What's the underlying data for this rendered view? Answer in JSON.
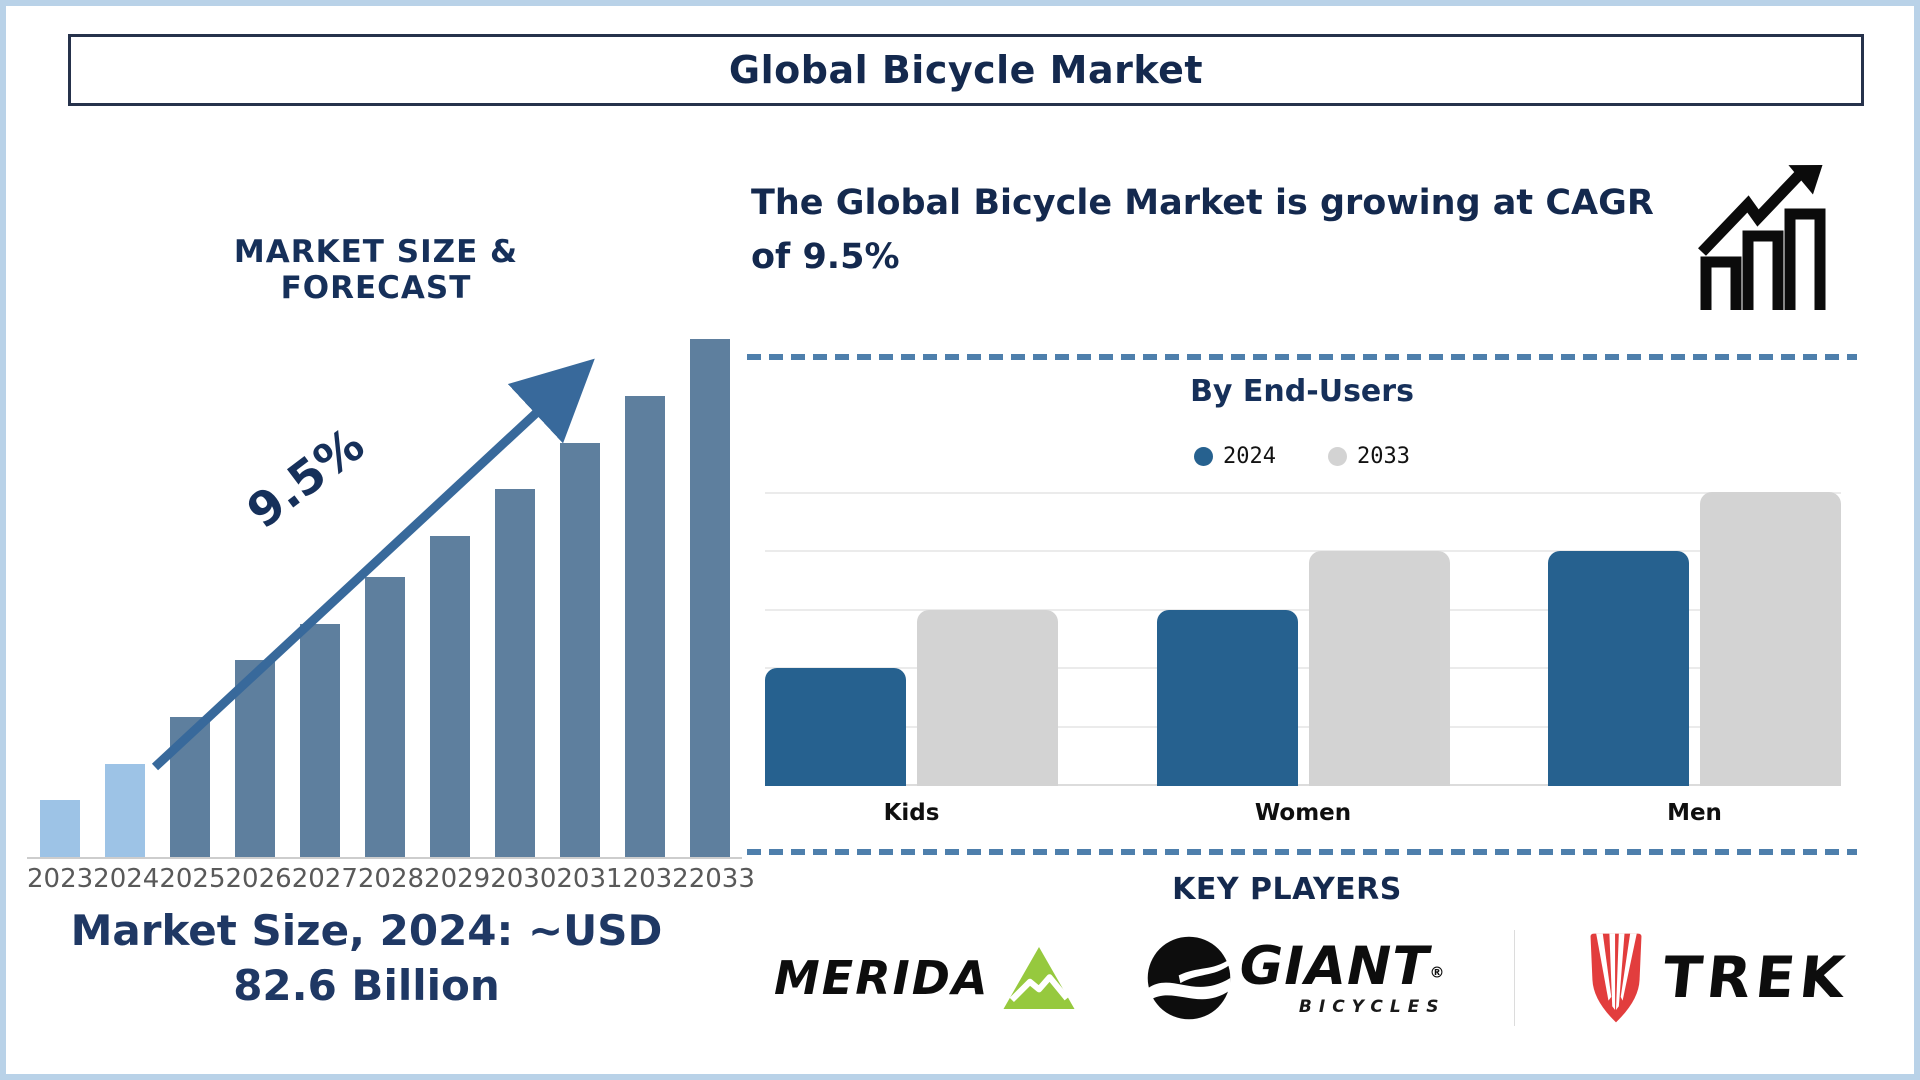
{
  "header": {
    "title": "Global Bicycle Market"
  },
  "market_forecast": {
    "title": "MARKET SIZE & FORECAST",
    "cagr_label": "9.5%",
    "caption_line1": "Market Size, 2024: ~USD",
    "caption_line2": "82.6 Billion"
  },
  "growth_statement": {
    "text": "The Global Bicycle Market is growing at CAGR of 9.5%"
  },
  "end_users": {
    "title": "By End-Users",
    "legend": [
      {
        "label": "2024",
        "color": "#26618F"
      },
      {
        "label": "2033",
        "color": "#D3D3D3"
      }
    ]
  },
  "key_players": {
    "title": "KEY PLAYERS",
    "brands": [
      {
        "name": "MERIDA"
      },
      {
        "name": "GIANT",
        "registered_mark": "®",
        "subtext": "BICYCLES"
      },
      {
        "name": "TREK"
      }
    ]
  },
  "colors": {
    "navy_heading": "#152C53",
    "light_blue_bar": "#9DC3E6",
    "steel_blue_bar": "#5E7F9E",
    "trend_arrow_blue": "#38699B",
    "end_users_blue": "#26618F",
    "end_users_gray": "#D3D3D3",
    "dashed_separator": "#4E7FAC",
    "frame_light_blue": "#B9D2E8",
    "year_label_gray": "#595959",
    "merida_green": "#96C93E",
    "trek_red": "#E23D3D"
  },
  "chart_data": [
    {
      "type": "bar",
      "title": "MARKET SIZE & FORECAST",
      "categories": [
        "2023",
        "2024",
        "2025",
        "2026",
        "2027",
        "2028",
        "2029",
        "2030",
        "2031",
        "2032",
        "2033"
      ],
      "values": [
        11,
        18,
        27,
        38,
        45,
        54,
        62,
        71,
        80,
        89,
        100
      ],
      "units": "relative bar height % (stylized illustration, not to numeric scale)",
      "bar_colors": [
        "#9DC3E6",
        "#9DC3E6",
        "#5E7F9E",
        "#5E7F9E",
        "#5E7F9E",
        "#5E7F9E",
        "#5E7F9E",
        "#5E7F9E",
        "#5E7F9E",
        "#5E7F9E",
        "#5E7F9E"
      ],
      "annotation": "9.5%",
      "note": "Market Size, 2024: ~USD 82.6 Billion",
      "xlabel": "",
      "ylabel": "",
      "grid": false
    },
    {
      "type": "bar",
      "title": "By End-Users",
      "categories": [
        "Kids",
        "Women",
        "Men"
      ],
      "series": [
        {
          "name": "2024",
          "values": [
            2,
            3,
            4
          ],
          "color": "#26618F"
        },
        {
          "name": "2033",
          "values": [
            3,
            4,
            5
          ],
          "color": "#D3D3D3"
        }
      ],
      "units": "relative gridline units (no numeric axis labels shown)",
      "ylim": [
        0,
        5
      ],
      "grid": true,
      "legend_position": "top"
    }
  ]
}
